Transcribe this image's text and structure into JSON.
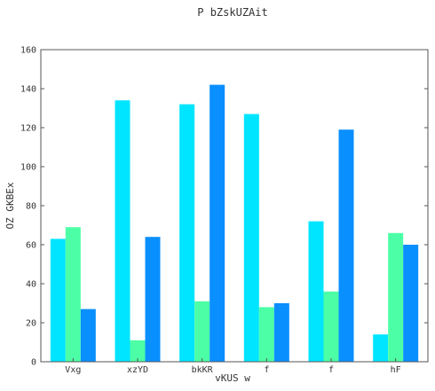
{
  "chart_data": {
    "type": "bar",
    "title": "P bZskUZAit",
    "xlabel": "vKUS w",
    "ylabel": "OZ GKBEx",
    "ylim": [
      0,
      160
    ],
    "yticks": [
      0,
      20,
      40,
      60,
      80,
      100,
      120,
      140,
      160
    ],
    "grid": false,
    "legend": "none",
    "categories": [
      "Vxg",
      "xzYD",
      "bkKR",
      "f",
      "f",
      "hF"
    ],
    "series": [
      {
        "values": [
          63,
          134,
          132,
          127,
          72,
          14
        ],
        "color": "#00e5ff"
      },
      {
        "values": [
          69,
          11,
          31,
          28,
          36,
          66
        ],
        "color": "#4cffa6"
      },
      {
        "values": [
          27,
          64,
          142,
          30,
          119,
          60
        ],
        "color": "#0a8fff"
      }
    ]
  }
}
